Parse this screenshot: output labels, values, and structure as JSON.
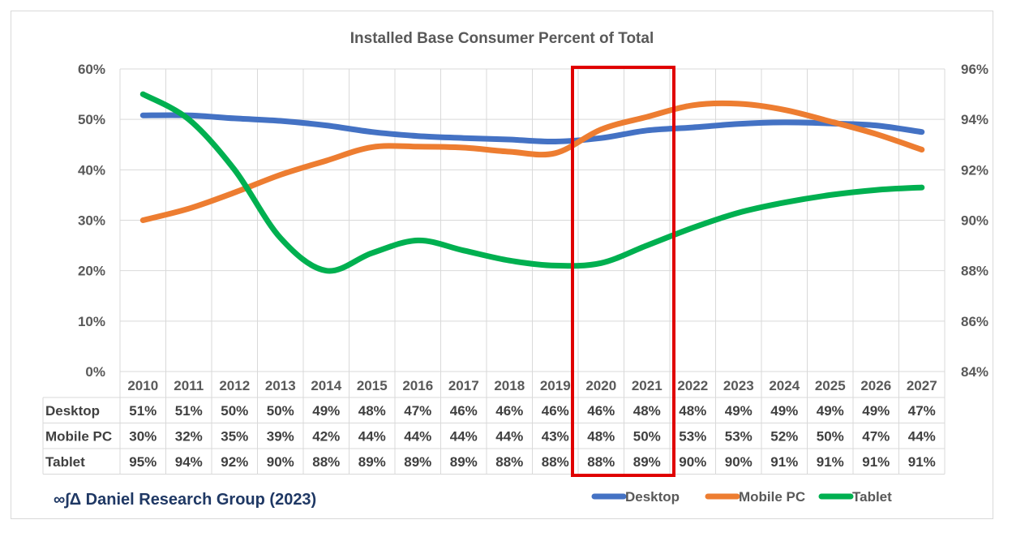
{
  "chart_data": {
    "type": "line",
    "title": "Installed Base Consumer Percent of Total",
    "x": [
      "2010",
      "2011",
      "2012",
      "2013",
      "2014",
      "2015",
      "2016",
      "2017",
      "2018",
      "2019",
      "2020",
      "2021",
      "2022",
      "2023",
      "2024",
      "2025",
      "2026",
      "2027"
    ],
    "y_left": {
      "ticks": [
        "0%",
        "10%",
        "20%",
        "30%",
        "40%",
        "50%",
        "60%"
      ],
      "range": [
        0,
        60
      ]
    },
    "y_right": {
      "ticks": [
        "84%",
        "86%",
        "88%",
        "90%",
        "92%",
        "94%",
        "96%"
      ],
      "range": [
        84,
        96
      ]
    },
    "grid": true,
    "legend_position": "bottom-right",
    "series": [
      {
        "name": "Desktop",
        "axis": "left",
        "color": "#4472c4",
        "values": [
          51,
          51,
          50,
          50,
          49,
          48,
          47,
          46,
          46,
          46,
          46,
          48,
          48,
          49,
          49,
          49,
          49,
          47
        ],
        "curve": [
          50.8,
          50.8,
          50.2,
          49.7,
          48.8,
          47.5,
          46.7,
          46.3,
          46.0,
          45.6,
          46.3,
          47.8,
          48.4,
          49.1,
          49.4,
          49.2,
          48.8,
          47.5
        ],
        "labels": [
          "51%",
          "51%",
          "50%",
          "50%",
          "49%",
          "48%",
          "47%",
          "46%",
          "46%",
          "46%",
          "46%",
          "48%",
          "48%",
          "49%",
          "49%",
          "49%",
          "49%",
          "47%"
        ]
      },
      {
        "name": "Mobile PC",
        "axis": "left",
        "color": "#ed7d31",
        "values": [
          30,
          32,
          35,
          39,
          42,
          44,
          44,
          44,
          44,
          43,
          48,
          50,
          53,
          53,
          52,
          50,
          47,
          44
        ],
        "curve": [
          30.0,
          32.3,
          35.5,
          39.0,
          41.8,
          44.5,
          44.6,
          44.4,
          43.6,
          43.3,
          48.0,
          50.5,
          52.8,
          53.1,
          51.9,
          49.6,
          47.1,
          44.0
        ],
        "labels": [
          "30%",
          "32%",
          "35%",
          "39%",
          "42%",
          "44%",
          "44%",
          "44%",
          "44%",
          "43%",
          "48%",
          "50%",
          "53%",
          "53%",
          "52%",
          "50%",
          "47%",
          "44%"
        ]
      },
      {
        "name": "Tablet",
        "axis": "right",
        "color": "#00b050",
        "values": [
          95,
          94,
          92,
          90,
          88,
          89,
          89,
          89,
          88,
          88,
          88,
          89,
          90,
          90,
          91,
          91,
          91,
          91
        ],
        "curve": [
          95.0,
          94.0,
          92.0,
          89.3,
          88.0,
          88.7,
          89.2,
          88.8,
          88.4,
          88.2,
          88.3,
          89.0,
          89.7,
          90.3,
          90.7,
          91.0,
          91.2,
          91.3
        ],
        "labels": [
          "95%",
          "94%",
          "92%",
          "90%",
          "88%",
          "89%",
          "89%",
          "89%",
          "88%",
          "88%",
          "88%",
          "89%",
          "90%",
          "90%",
          "91%",
          "91%",
          "91%",
          "91%"
        ]
      }
    ],
    "highlight": {
      "from": "2020",
      "to": "2021",
      "color": "#e00000"
    }
  },
  "source": "∞∫Δ Daniel Research Group (2023)"
}
